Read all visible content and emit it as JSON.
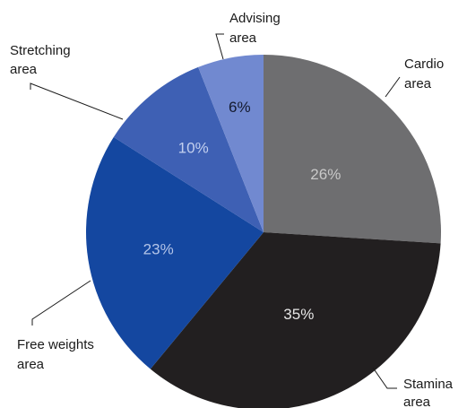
{
  "chart_data": {
    "type": "pie",
    "title": "",
    "start_angle_deg": 0,
    "direction": "clockwise",
    "slices": [
      {
        "label_lines": [
          "Cardio",
          "area"
        ],
        "value": 26,
        "value_label": "26%",
        "color": "#6e6e70",
        "value_color": "#c9c9c9"
      },
      {
        "label_lines": [
          "Stamina",
          "area"
        ],
        "value": 35,
        "value_label": "35%",
        "color": "#221f20",
        "value_color": "#e6e6e6"
      },
      {
        "label_lines": [
          "Free weights",
          "area"
        ],
        "value": 23,
        "value_label": "23%",
        "color": "#1447a0",
        "value_color": "#b3c4e8"
      },
      {
        "label_lines": [
          "Stretching",
          "area"
        ],
        "value": 10,
        "value_label": "10%",
        "color": "#3e60b4",
        "value_color": "#c3d0ef"
      },
      {
        "label_lines": [
          "Advising",
          "area"
        ],
        "value": 6,
        "value_label": "6%",
        "color": "#7189d0",
        "value_color": "#141a2e"
      }
    ]
  }
}
